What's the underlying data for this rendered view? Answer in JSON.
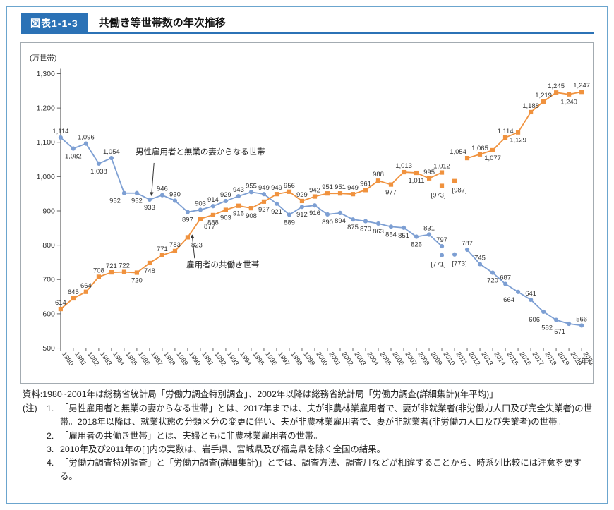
{
  "header": {
    "figure_label": "図表1-1-3",
    "title": "共働き等世帯数の年次推移",
    "accent_color": "#2B72B6",
    "frame_color": "#6BA5CE"
  },
  "chart_data": {
    "type": "line",
    "title": "共働き等世帯数の年次推移",
    "unit_y": "(万世帯)",
    "unit_x": "(年)",
    "ylim": [
      500,
      1300
    ],
    "y_ticks": [
      500,
      600,
      700,
      800,
      900,
      1000,
      1100,
      1200,
      1300
    ],
    "grid": false,
    "years": [
      1980,
      1981,
      1982,
      1983,
      1984,
      1985,
      1986,
      1987,
      1988,
      1989,
      1990,
      1991,
      1992,
      1993,
      1994,
      1995,
      1996,
      1997,
      1998,
      1999,
      2000,
      2001,
      2002,
      2003,
      2004,
      2005,
      2006,
      2007,
      2008,
      2009,
      2010,
      2011,
      2012,
      2013,
      2014,
      2015,
      2016,
      2017,
      2018,
      2019,
      2020,
      2021
    ],
    "series": [
      {
        "name": "男性雇用者と無業の妻からなる世帯",
        "color": "#7D9FD3",
        "marker": "circle",
        "values": [
          1114,
          1082,
          1096,
          1038,
          1054,
          952,
          952,
          933,
          946,
          930,
          897,
          903,
          914,
          929,
          943,
          955,
          949,
          921,
          889,
          912,
          916,
          890,
          894,
          875,
          870,
          863,
          854,
          851,
          825,
          831,
          797,
          null,
          787,
          745,
          720,
          687,
          664,
          641,
          606,
          582,
          571,
          566
        ],
        "label_pos": [
          "a",
          "b",
          "a",
          "b",
          "a",
          "bl",
          "b",
          "b",
          "a",
          "a",
          "b",
          "a",
          "a",
          "a",
          "a",
          "a",
          "a",
          "b",
          "b",
          "b",
          "b",
          "b",
          "b",
          "b",
          "b",
          "b",
          "b",
          "b",
          "b",
          "a",
          "a",
          null,
          "a",
          "a",
          "b",
          "a",
          "bl",
          "a",
          "bl",
          "bl",
          "bl",
          "a"
        ]
      },
      {
        "name": "雇用者の共働き世帯",
        "color": "#F0923E",
        "marker": "square",
        "values": [
          614,
          645,
          664,
          708,
          721,
          722,
          720,
          748,
          771,
          783,
          823,
          877,
          888,
          903,
          915,
          908,
          927,
          949,
          956,
          929,
          942,
          951,
          951,
          949,
          961,
          988,
          977,
          1013,
          1011,
          995,
          1012,
          null,
          1054,
          1065,
          1077,
          1114,
          1129,
          1188,
          1219,
          1245,
          1240,
          1247
        ],
        "label_pos": [
          "a",
          "a",
          "a",
          "a",
          "a",
          "a",
          "b",
          "b",
          "a",
          "a",
          "br",
          "br",
          "b",
          "b",
          "b",
          "b",
          "b",
          "a",
          "a",
          "a",
          "a",
          "a",
          "a",
          "a",
          "a",
          "a",
          "b",
          "a",
          "b",
          "a",
          "a",
          null,
          "al",
          "a",
          "b",
          "a",
          "b",
          "a",
          "a",
          "a",
          "b",
          "a"
        ]
      }
    ],
    "bracketed_points": [
      {
        "series": 0,
        "year": 2010,
        "value": 771,
        "label": "[771]",
        "label_dx": -5
      },
      {
        "series": 0,
        "year": 2011,
        "value": 773,
        "label": "[773]",
        "label_dx": 7
      },
      {
        "series": 1,
        "year": 2010,
        "value": 973,
        "label": "[973]",
        "label_dx": -5
      },
      {
        "series": 1,
        "year": 2011,
        "value": 987,
        "label": "[987]",
        "label_dx": 7
      }
    ],
    "annotations": [
      {
        "text": "男性雇用者と無業の妻からなる世帯",
        "year": 1985.9,
        "value": 1065,
        "leader": [
          [
            1987.35,
            1040
          ],
          [
            1987.15,
            945
          ]
        ]
      },
      {
        "text": "雇用者の共働き世帯",
        "year": 1989.9,
        "value": 735,
        "leader": [
          [
            1990.55,
            762
          ],
          [
            1990.35,
            830
          ]
        ]
      }
    ],
    "legend_position": "inline-annotations"
  },
  "notes": {
    "source": "資料:1980~2001年は総務省統計局「労働力調査特別調査」、2002年以降は総務省統計局「労働力調査(詳細集計)(年平均)」",
    "label": "(注)",
    "items": [
      {
        "num": "1.",
        "text": "「男性雇用者と無業の妻からなる世帯」とは、2017年までは、夫が非農林業雇用者で、妻が非就業者(非労働力人口及び完全失業者)の世帯。2018年以降は、就業状態の分類区分の変更に伴い、夫が非農林業雇用者で、妻が非就業者(非労働力人口及び失業者)の世帯。"
      },
      {
        "num": "2.",
        "text": "「雇用者の共働き世帯」とは、夫婦ともに非農林業雇用者の世帯。"
      },
      {
        "num": "3.",
        "text": "2010年及び2011年の[ ]内の実数は、岩手県、宮城県及び福島県を除く全国の結果。"
      },
      {
        "num": "4.",
        "text": "「労働力調査特別調査」と「労働力調査(詳細集計)」とでは、調査方法、調査月などが相違することから、時系列比較には注意を要する。"
      }
    ]
  }
}
